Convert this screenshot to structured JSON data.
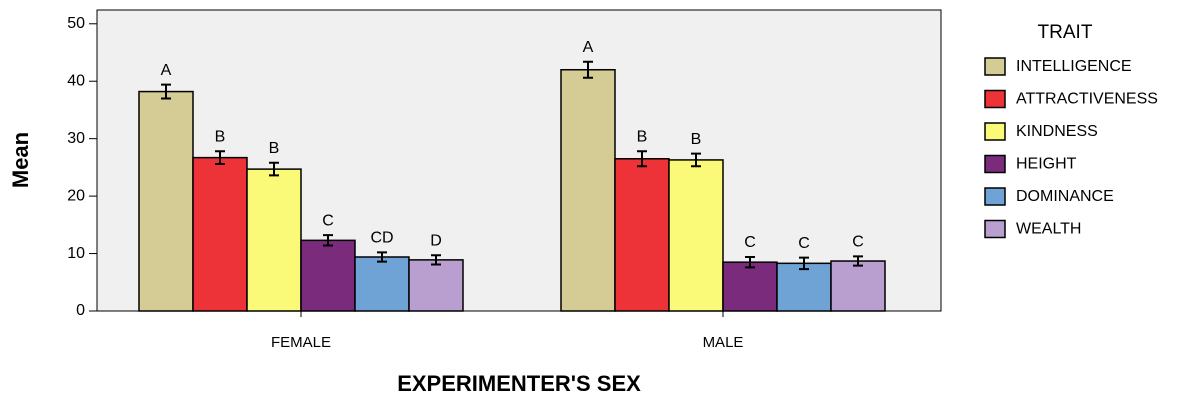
{
  "chart_data": {
    "type": "bar",
    "x_label": "EXPERIMENTER'S SEX",
    "y_label": "Mean",
    "legend_title": "TRAIT",
    "categories": [
      "FEMALE",
      "MALE"
    ],
    "series": [
      {
        "name": "INTELLIGENCE",
        "color": "#d4cc94",
        "values": [
          38.2,
          42.0
        ],
        "errors": [
          1.2,
          1.4
        ],
        "labels": [
          "A",
          "A"
        ]
      },
      {
        "name": "ATTRACTIVENESS",
        "color": "#ee3338",
        "values": [
          26.7,
          26.5
        ],
        "errors": [
          1.1,
          1.3
        ],
        "labels": [
          "B",
          "B"
        ]
      },
      {
        "name": "KINDNESS",
        "color": "#fafa78",
        "values": [
          24.7,
          26.3
        ],
        "errors": [
          1.1,
          1.1
        ],
        "labels": [
          "B",
          "B"
        ]
      },
      {
        "name": "HEIGHT",
        "color": "#7a2b7c",
        "values": [
          12.3,
          8.5
        ],
        "errors": [
          0.9,
          0.9
        ],
        "labels": [
          "C",
          "C"
        ]
      },
      {
        "name": "DOMINANCE",
        "color": "#6fa3d6",
        "values": [
          9.4,
          8.3
        ],
        "errors": [
          0.8,
          1.0
        ],
        "labels": [
          "CD",
          "C"
        ]
      },
      {
        "name": "WEALTH",
        "color": "#b89fcf",
        "values": [
          8.9,
          8.7
        ],
        "errors": [
          0.8,
          0.8
        ],
        "labels": [
          "D",
          "C"
        ]
      }
    ],
    "ylim": [
      0,
      52.4
    ],
    "yticks": [
      0,
      10,
      20,
      30,
      40,
      50
    ],
    "legend": "right"
  }
}
